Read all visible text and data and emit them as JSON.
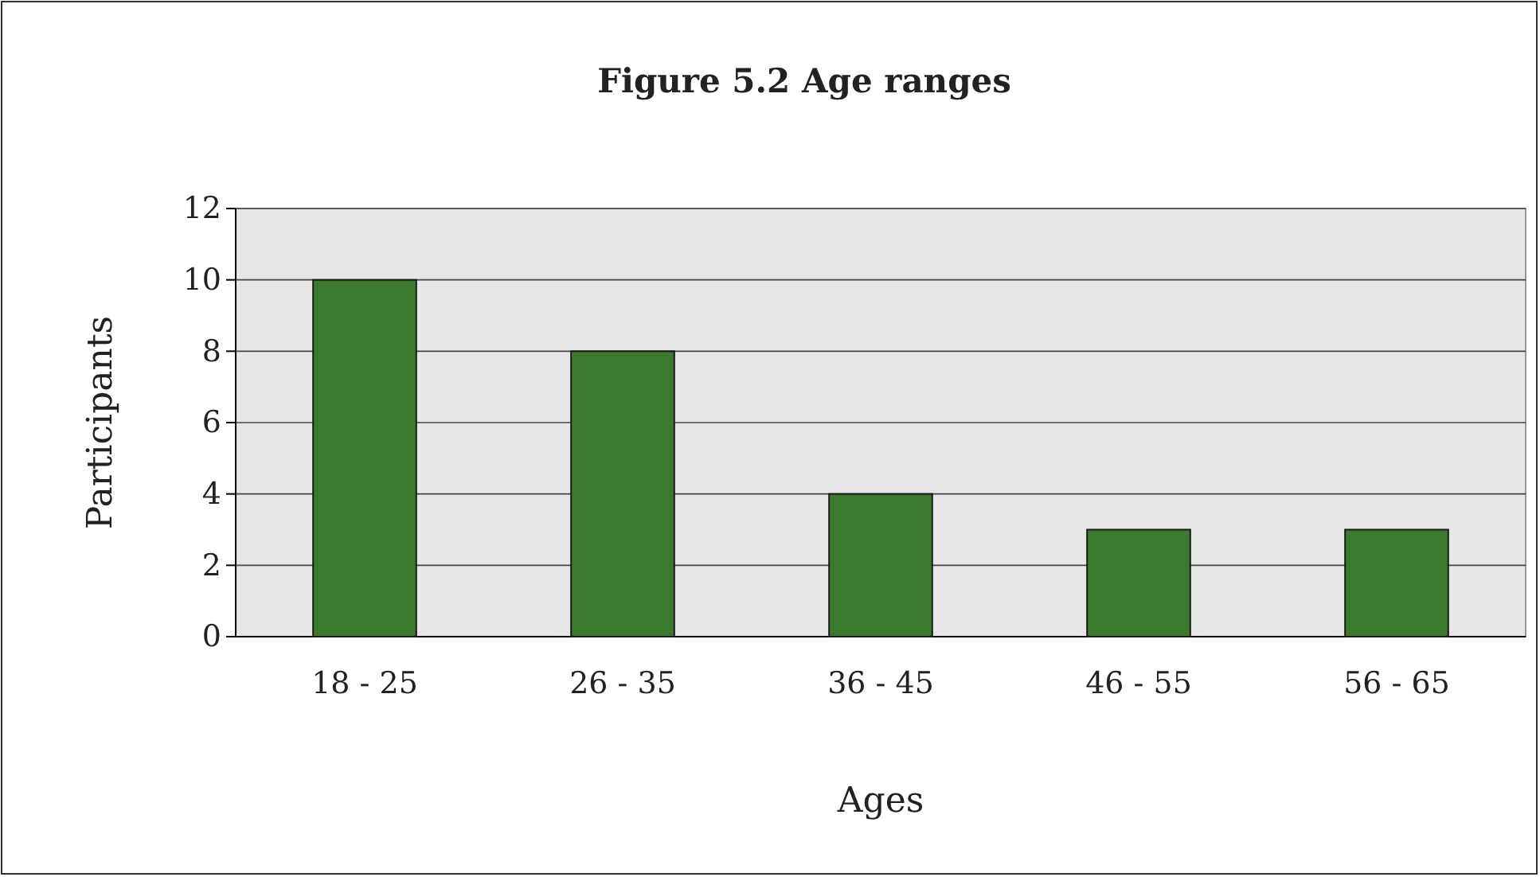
{
  "chart_data": {
    "type": "bar",
    "title": "Figure 5.2 Age ranges",
    "xlabel": "Ages",
    "ylabel": "Participants",
    "categories": [
      "18 - 25",
      "26 - 35",
      "36 - 45",
      "46 - 55",
      "56 - 65"
    ],
    "values": [
      10,
      8,
      4,
      3,
      3
    ],
    "color": "#3b7a2c",
    "ylim": [
      0,
      12
    ],
    "yticks": [
      0,
      2,
      4,
      6,
      8,
      10,
      12
    ],
    "grid": "y"
  }
}
